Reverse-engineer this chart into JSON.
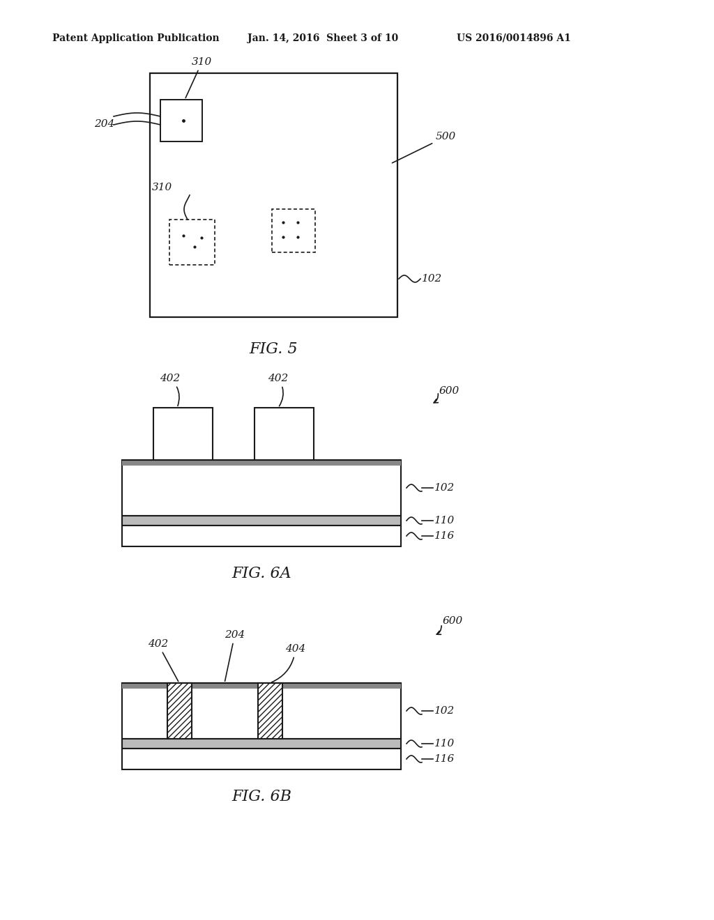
{
  "bg_color": "#ffffff",
  "black": "#1a1a1a",
  "header_left": "Patent Application Publication",
  "header_mid": "Jan. 14, 2016  Sheet 3 of 10",
  "header_right": "US 2016/0014896 A1",
  "fig5_caption": "FIG. 5",
  "fig6a_caption": "FIG. 6A",
  "fig6b_caption": "FIG. 6B",
  "gray110": "#bbbbbb",
  "gray_bump_top": "#999999"
}
